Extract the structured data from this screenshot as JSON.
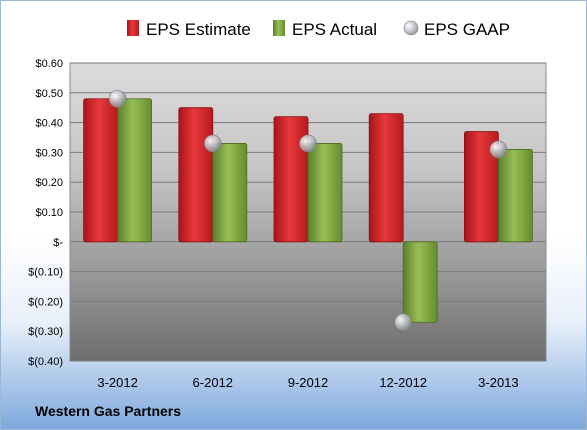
{
  "company": "Western Gas Partners",
  "chart_data": {
    "type": "bar",
    "categories": [
      "3-2012",
      "6-2012",
      "9-2012",
      "12-2012",
      "3-2013"
    ],
    "series": [
      {
        "name": "EPS Estimate",
        "type": "bar",
        "values": [
          0.48,
          0.45,
          0.42,
          0.43,
          0.37
        ],
        "color": "#d42426"
      },
      {
        "name": "EPS Actual",
        "type": "bar",
        "values": [
          0.48,
          0.33,
          0.33,
          -0.27,
          0.31
        ],
        "color": "#7ba23f"
      },
      {
        "name": "EPS GAAP",
        "type": "scatter",
        "values": [
          0.48,
          0.33,
          0.33,
          -0.27,
          0.31
        ],
        "color": "#b0b0b8"
      }
    ],
    "yticks": [
      0.6,
      0.5,
      0.4,
      0.3,
      0.2,
      0.1,
      0,
      -0.1,
      -0.2,
      -0.3,
      -0.4
    ],
    "ytick_labels": [
      "$0.60",
      "$0.50",
      "$0.40",
      "$0.30",
      "$0.20",
      "$0.10",
      "$-",
      "$(0.10)",
      "$(0.20)",
      "$(0.30)",
      "$(0.40)"
    ],
    "ylim": [
      -0.4,
      0.6
    ],
    "grid": true,
    "legend": "top-center"
  }
}
